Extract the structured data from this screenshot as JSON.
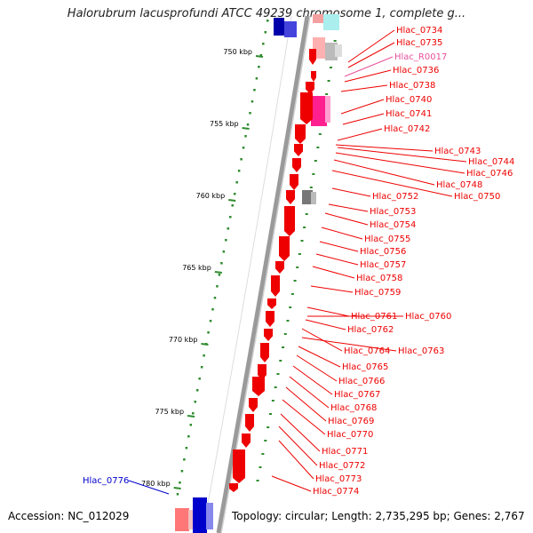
{
  "title": "Halorubrum lacusprofundi ATCC 49239 chromosome 1, complete g...",
  "footer": {
    "accession": "Accession: NC_012029",
    "topology": "Topology: circular; Length: 2,735,295 bp; Genes: 2,767"
  },
  "colors": {
    "forward": "#ee0000",
    "reverse": "#0000cc",
    "rna": "#e8509a",
    "pseudo": "#888888",
    "tick": "#2e8b2e",
    "backbone": "#9a9a9a"
  },
  "ticks": [
    {
      "label": "750 kbp",
      "kbp": 750
    },
    {
      "label": "755 kbp",
      "kbp": 755
    },
    {
      "label": "760 kbp",
      "kbp": 760
    },
    {
      "label": "765 kbp",
      "kbp": 765
    },
    {
      "label": "770 kbp",
      "kbp": 770
    },
    {
      "label": "775 kbp",
      "kbp": 775
    },
    {
      "label": "780 kbp",
      "kbp": 780
    }
  ],
  "genes": [
    {
      "name": "Hlac_0734",
      "color": "red"
    },
    {
      "name": "Hlac_0735",
      "color": "red"
    },
    {
      "name": "Hlac_R0017",
      "color": "pink"
    },
    {
      "name": "Hlac_0736",
      "color": "red"
    },
    {
      "name": "Hlac_0738",
      "color": "red"
    },
    {
      "name": "Hlac_0740",
      "color": "red"
    },
    {
      "name": "Hlac_0741",
      "color": "red"
    },
    {
      "name": "Hlac_0742",
      "color": "red"
    },
    {
      "name": "Hlac_0743",
      "color": "red"
    },
    {
      "name": "Hlac_0744",
      "color": "red"
    },
    {
      "name": "Hlac_0746",
      "color": "red"
    },
    {
      "name": "Hlac_0748",
      "color": "red"
    },
    {
      "name": "Hlac_0750",
      "color": "red"
    },
    {
      "name": "Hlac_0752",
      "color": "red"
    },
    {
      "name": "Hlac_0753",
      "color": "red"
    },
    {
      "name": "Hlac_0754",
      "color": "red"
    },
    {
      "name": "Hlac_0755",
      "color": "red"
    },
    {
      "name": "Hlac_0756",
      "color": "red"
    },
    {
      "name": "Hlac_0757",
      "color": "red"
    },
    {
      "name": "Hlac_0758",
      "color": "red"
    },
    {
      "name": "Hlac_0759",
      "color": "red"
    },
    {
      "name": "Hlac_0761",
      "color": "red"
    },
    {
      "name": "Hlac_0760",
      "color": "red"
    },
    {
      "name": "Hlac_0762",
      "color": "red"
    },
    {
      "name": "Hlac_0764",
      "color": "red"
    },
    {
      "name": "Hlac_0763",
      "color": "red"
    },
    {
      "name": "Hlac_0765",
      "color": "red"
    },
    {
      "name": "Hlac_0766",
      "color": "red"
    },
    {
      "name": "Hlac_0767",
      "color": "red"
    },
    {
      "name": "Hlac_0768",
      "color": "red"
    },
    {
      "name": "Hlac_0769",
      "color": "red"
    },
    {
      "name": "Hlac_0770",
      "color": "red"
    },
    {
      "name": "Hlac_0771",
      "color": "red"
    },
    {
      "name": "Hlac_0772",
      "color": "red"
    },
    {
      "name": "Hlac_0773",
      "color": "red"
    },
    {
      "name": "Hlac_0774",
      "color": "red"
    },
    {
      "name": "Hlac_0776",
      "color": "blue"
    }
  ]
}
